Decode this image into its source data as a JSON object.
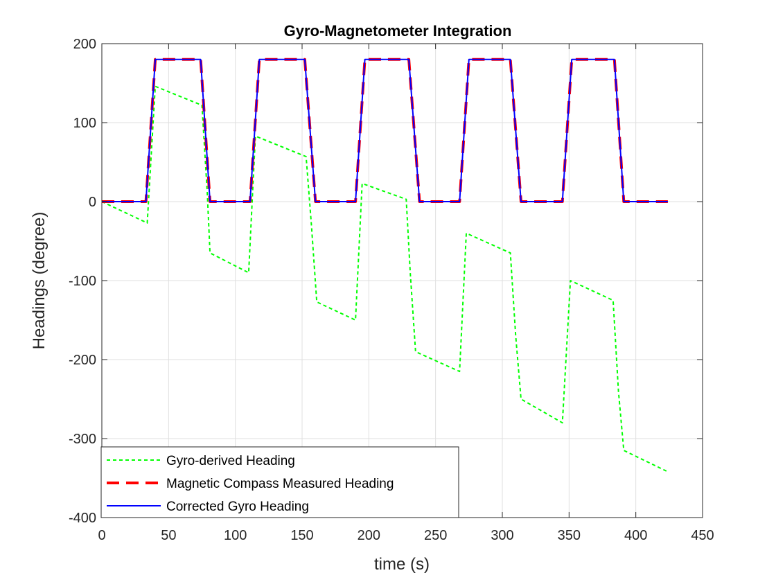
{
  "chart_data": {
    "type": "line",
    "title": "Gyro-Magnetometer Integration",
    "xlabel": "time (s)",
    "ylabel": "Headings (degree)",
    "xlim": [
      0,
      450
    ],
    "ylim": [
      -400,
      200
    ],
    "xticks": [
      0,
      50,
      100,
      150,
      200,
      250,
      300,
      350,
      400,
      450
    ],
    "yticks": [
      200,
      100,
      0,
      -100,
      -200,
      -300,
      -400
    ],
    "grid": true,
    "legend_position": "bottom-left",
    "series": [
      {
        "name": "Gyro-derived Heading",
        "color": "#00ff00",
        "style": "dotted",
        "x": [
          0,
          34,
          40,
          75,
          79,
          81,
          110,
          115,
          153,
          157,
          161,
          190,
          195,
          228,
          231,
          235,
          268,
          273,
          306,
          310,
          314,
          345,
          351,
          383,
          387,
          391,
          424
        ],
        "y": [
          0,
          -27,
          146,
          122,
          10,
          -65,
          -90,
          83,
          57,
          -30,
          -127,
          -150,
          23,
          3,
          -90,
          -190,
          -215,
          -40,
          -65,
          -170,
          -250,
          -280,
          -100,
          -125,
          -240,
          -315,
          -342
        ]
      },
      {
        "name": "Magnetic Compass Measured Heading",
        "color": "#ff0000",
        "style": "dashed",
        "x": [
          0,
          33,
          40,
          74,
          81,
          111,
          118,
          152,
          160,
          190,
          197,
          230,
          238,
          268,
          275,
          306,
          314,
          345,
          352,
          384,
          391,
          424
        ],
        "y": [
          0,
          0,
          180,
          180,
          0,
          0,
          180,
          180,
          0,
          0,
          180,
          180,
          0,
          0,
          180,
          180,
          0,
          0,
          180,
          180,
          0,
          0
        ]
      },
      {
        "name": "Corrected Gyro Heading",
        "color": "#0000ff",
        "style": "solid",
        "x": [
          0,
          33,
          40,
          74,
          81,
          111,
          118,
          152,
          160,
          190,
          197,
          230,
          238,
          268,
          275,
          306,
          314,
          345,
          352,
          384,
          391,
          424
        ],
        "y": [
          0,
          0,
          180,
          180,
          0,
          0,
          180,
          180,
          0,
          0,
          180,
          180,
          0,
          0,
          180,
          180,
          0,
          0,
          180,
          180,
          0,
          0
        ]
      }
    ]
  }
}
